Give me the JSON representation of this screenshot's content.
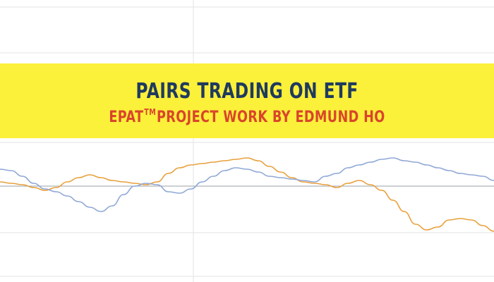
{
  "banner": {
    "title": "PAIRS TRADING ON ETF",
    "subtitle_prefix": "EPAT",
    "subtitle_tm": "TM",
    "subtitle_suffix": "PROJECT WORK BY EDMUND HO"
  },
  "colors": {
    "banner_background": "#fbf03a",
    "title_color": "#1f3a5f",
    "subtitle_color": "#d9452b",
    "series_orange": "#e8a03c",
    "series_blue": "#8fa8d6",
    "grid": "#e3e3e3",
    "baseline": "#9aa0a6"
  },
  "background_chart": {
    "type": "line",
    "grid": true,
    "series": [
      {
        "color": "orange",
        "values": [
          0.3,
          0.2,
          0.1,
          -0.1,
          -0.3,
          -0.1,
          0.3,
          0.6,
          0.8,
          0.6,
          0.4,
          0.3,
          0.2,
          0.1,
          0.3,
          0.9,
          1.3,
          1.5,
          1.6,
          1.7,
          1.8,
          1.9,
          2.0,
          1.8,
          1.4,
          1.0,
          0.6,
          0.3,
          0.2,
          0.1,
          -0.1,
          0.2,
          0.4,
          0.1,
          -0.3,
          -1.0,
          -1.8,
          -2.7,
          -3.1,
          -2.9,
          -2.4,
          -2.3,
          -2.4,
          -2.8,
          -3.2
        ]
      },
      {
        "color": "blue",
        "values": [
          1.2,
          1.1,
          0.7,
          0.2,
          -0.2,
          -0.4,
          -0.7,
          -1.1,
          -1.5,
          -1.8,
          -1.4,
          -0.6,
          0.0,
          0.2,
          0.1,
          -0.4,
          -0.5,
          -0.2,
          0.3,
          0.7,
          1.1,
          1.3,
          1.2,
          1.0,
          0.7,
          0.6,
          0.5,
          0.4,
          0.3,
          0.7,
          0.9,
          1.3,
          1.5,
          1.7,
          1.9,
          2.0,
          1.8,
          1.7,
          1.5,
          1.3,
          1.1,
          0.9,
          0.8,
          0.7,
          0.4
        ]
      }
    ]
  }
}
